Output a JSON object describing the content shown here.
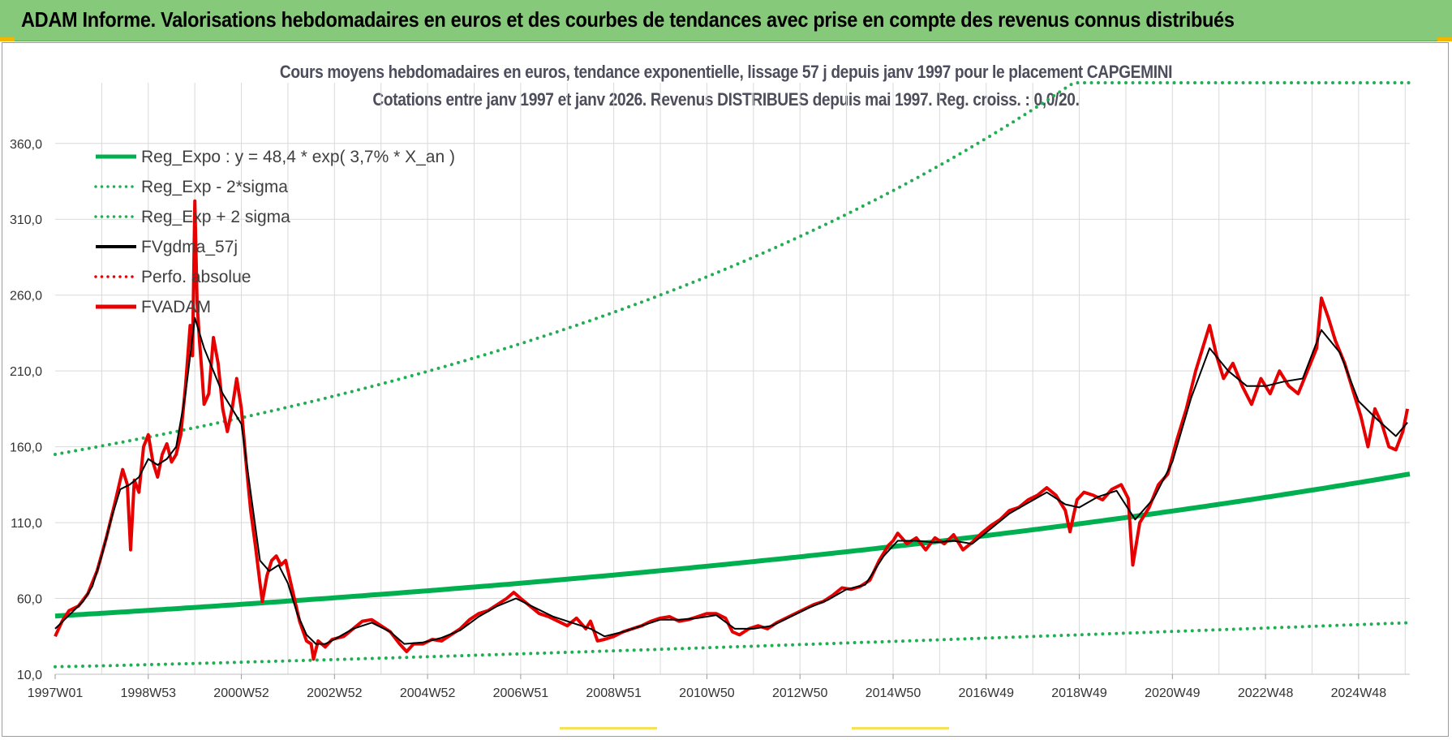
{
  "header": {
    "title": "ADAM Informe. Valorisations hebdomadaires en euros et des courbes de tendances avec prise en compte des revenus connus distribués"
  },
  "chart": {
    "title_line1": "Cours moyens hebdomadaires en euros, tendance exponentielle, lissage 57 j depuis janv 1997 pour le placement CAPGEMINI",
    "title_line2": "Cotations entre janv 1997 et janv 2026. Revenus DISTRIBUES depuis mai 1997. Reg. croiss. : 0,0/20."
  },
  "colors": {
    "header_bg": "#86c97a",
    "reg_green": "#00b050",
    "sigma_green": "#1fae52",
    "smooth_black": "#000000",
    "adam_red": "#e60000",
    "perfo_red": "#e60000",
    "grid": "#d9d9d9"
  },
  "chart_data": {
    "type": "line",
    "xlabel": "",
    "ylabel": "",
    "x_range": [
      1997.0,
      2026.1
    ],
    "ylim": [
      10,
      400
    ],
    "y_ticks": [
      "10,0",
      "60,0",
      "110,0",
      "160,0",
      "210,0",
      "260,0",
      "310,0",
      "360,0"
    ],
    "y_tick_values": [
      10,
      60,
      110,
      160,
      210,
      260,
      310,
      360
    ],
    "x_tick_labels": [
      "1997W01",
      "1998W53",
      "2000W52",
      "2002W52",
      "2004W52",
      "2006W51",
      "2008W51",
      "2010W50",
      "2012W50",
      "2014W50",
      "2016W49",
      "2018W49",
      "2020W49",
      "2022W48",
      "2024W48"
    ],
    "x_tick_values": [
      1997.0,
      1999.0,
      2001.0,
      2003.0,
      2005.0,
      2007.0,
      2009.0,
      2011.0,
      2013.0,
      2015.0,
      2017.0,
      2019.0,
      2021.0,
      2023.0,
      2025.0
    ],
    "legend": [
      {
        "label": "Reg_Expo : y = 48,4 * exp( 3,7% *  X_an )",
        "style": "solid-thick",
        "color": "#00b050"
      },
      {
        "label": "Reg_Exp - 2*sigma",
        "style": "dotted",
        "color": "#1fae52"
      },
      {
        "label": "Reg_Exp + 2 sigma",
        "style": "dotted",
        "color": "#1fae52"
      },
      {
        "label": "FVgdma_57j",
        "style": "solid",
        "color": "#000000"
      },
      {
        "label": "Perfo. absolue",
        "style": "dotted",
        "color": "#e60000"
      },
      {
        "label": "FVADAM",
        "style": "solid-thick",
        "color": "#e60000"
      }
    ],
    "regression": {
      "a": 48.4,
      "rate": 0.037,
      "start_year": 1997.0,
      "end_year": 2026.1
    },
    "sigma_lower": {
      "start": 15,
      "end": 44
    },
    "sigma_upper": {
      "start": 155,
      "end_cap": 400
    },
    "series": [
      {
        "name": "FVADAM",
        "points": [
          [
            1997.0,
            35
          ],
          [
            1997.15,
            45
          ],
          [
            1997.3,
            52
          ],
          [
            1997.5,
            55
          ],
          [
            1997.7,
            63
          ],
          [
            1997.9,
            78
          ],
          [
            1998.1,
            100
          ],
          [
            1998.3,
            125
          ],
          [
            1998.45,
            145
          ],
          [
            1998.55,
            135
          ],
          [
            1998.62,
            92
          ],
          [
            1998.7,
            138
          ],
          [
            1998.8,
            130
          ],
          [
            1998.9,
            160
          ],
          [
            1999.0,
            168
          ],
          [
            1999.1,
            150
          ],
          [
            1999.2,
            140
          ],
          [
            1999.3,
            155
          ],
          [
            1999.4,
            162
          ],
          [
            1999.5,
            150
          ],
          [
            1999.6,
            155
          ],
          [
            1999.7,
            168
          ],
          [
            1999.8,
            200
          ],
          [
            1999.9,
            240
          ],
          [
            1999.95,
            220
          ],
          [
            2000.0,
            322
          ],
          [
            2000.05,
            255
          ],
          [
            2000.1,
            230
          ],
          [
            2000.15,
            210
          ],
          [
            2000.2,
            188
          ],
          [
            2000.3,
            195
          ],
          [
            2000.4,
            232
          ],
          [
            2000.5,
            215
          ],
          [
            2000.6,
            185
          ],
          [
            2000.7,
            170
          ],
          [
            2000.8,
            185
          ],
          [
            2000.9,
            205
          ],
          [
            2001.0,
            185
          ],
          [
            2001.1,
            150
          ],
          [
            2001.2,
            118
          ],
          [
            2001.3,
            95
          ],
          [
            2001.4,
            70
          ],
          [
            2001.45,
            58
          ],
          [
            2001.55,
            75
          ],
          [
            2001.65,
            85
          ],
          [
            2001.75,
            88
          ],
          [
            2001.85,
            82
          ],
          [
            2001.95,
            85
          ],
          [
            2002.1,
            65
          ],
          [
            2002.25,
            45
          ],
          [
            2002.4,
            32
          ],
          [
            2002.5,
            30
          ],
          [
            2002.55,
            20
          ],
          [
            2002.65,
            32
          ],
          [
            2002.8,
            28
          ],
          [
            2002.95,
            33
          ],
          [
            2003.2,
            35
          ],
          [
            2003.4,
            40
          ],
          [
            2003.6,
            45
          ],
          [
            2003.8,
            46
          ],
          [
            2004.0,
            42
          ],
          [
            2004.2,
            38
          ],
          [
            2004.4,
            30
          ],
          [
            2004.55,
            25
          ],
          [
            2004.7,
            30
          ],
          [
            2004.9,
            30
          ],
          [
            2005.1,
            33
          ],
          [
            2005.3,
            32
          ],
          [
            2005.5,
            36
          ],
          [
            2005.7,
            40
          ],
          [
            2005.9,
            46
          ],
          [
            2006.1,
            50
          ],
          [
            2006.3,
            52
          ],
          [
            2006.5,
            56
          ],
          [
            2006.7,
            60
          ],
          [
            2006.85,
            64
          ],
          [
            2007.0,
            60
          ],
          [
            2007.2,
            55
          ],
          [
            2007.4,
            50
          ],
          [
            2007.6,
            48
          ],
          [
            2007.8,
            45
          ],
          [
            2008.0,
            42
          ],
          [
            2008.2,
            47
          ],
          [
            2008.4,
            40
          ],
          [
            2008.5,
            45
          ],
          [
            2008.65,
            32
          ],
          [
            2008.8,
            33
          ],
          [
            2009.0,
            35
          ],
          [
            2009.2,
            38
          ],
          [
            2009.4,
            40
          ],
          [
            2009.6,
            42
          ],
          [
            2009.8,
            45
          ],
          [
            2010.0,
            47
          ],
          [
            2010.2,
            48
          ],
          [
            2010.4,
            45
          ],
          [
            2010.6,
            46
          ],
          [
            2010.8,
            48
          ],
          [
            2011.0,
            50
          ],
          [
            2011.2,
            50
          ],
          [
            2011.4,
            47
          ],
          [
            2011.55,
            38
          ],
          [
            2011.7,
            36
          ],
          [
            2011.9,
            40
          ],
          [
            2012.1,
            42
          ],
          [
            2012.3,
            40
          ],
          [
            2012.5,
            44
          ],
          [
            2012.7,
            47
          ],
          [
            2012.9,
            50
          ],
          [
            2013.1,
            53
          ],
          [
            2013.3,
            56
          ],
          [
            2013.5,
            58
          ],
          [
            2013.7,
            62
          ],
          [
            2013.9,
            67
          ],
          [
            2014.1,
            66
          ],
          [
            2014.3,
            68
          ],
          [
            2014.5,
            72
          ],
          [
            2014.7,
            85
          ],
          [
            2014.9,
            95
          ],
          [
            2015.0,
            98
          ],
          [
            2015.1,
            103
          ],
          [
            2015.3,
            96
          ],
          [
            2015.5,
            100
          ],
          [
            2015.7,
            92
          ],
          [
            2015.9,
            100
          ],
          [
            2016.1,
            96
          ],
          [
            2016.3,
            102
          ],
          [
            2016.5,
            92
          ],
          [
            2016.7,
            97
          ],
          [
            2016.9,
            103
          ],
          [
            2017.1,
            108
          ],
          [
            2017.3,
            112
          ],
          [
            2017.5,
            118
          ],
          [
            2017.7,
            120
          ],
          [
            2017.9,
            125
          ],
          [
            2018.1,
            128
          ],
          [
            2018.3,
            133
          ],
          [
            2018.5,
            128
          ],
          [
            2018.7,
            118
          ],
          [
            2018.8,
            104
          ],
          [
            2018.95,
            125
          ],
          [
            2019.1,
            130
          ],
          [
            2019.3,
            128
          ],
          [
            2019.5,
            125
          ],
          [
            2019.7,
            132
          ],
          [
            2019.9,
            135
          ],
          [
            2020.05,
            126
          ],
          [
            2020.15,
            82
          ],
          [
            2020.3,
            110
          ],
          [
            2020.5,
            120
          ],
          [
            2020.7,
            135
          ],
          [
            2020.9,
            142
          ],
          [
            2021.1,
            165
          ],
          [
            2021.3,
            185
          ],
          [
            2021.5,
            210
          ],
          [
            2021.65,
            225
          ],
          [
            2021.8,
            240
          ],
          [
            2021.95,
            220
          ],
          [
            2022.1,
            205
          ],
          [
            2022.3,
            215
          ],
          [
            2022.5,
            200
          ],
          [
            2022.7,
            188
          ],
          [
            2022.9,
            205
          ],
          [
            2023.1,
            195
          ],
          [
            2023.3,
            210
          ],
          [
            2023.5,
            200
          ],
          [
            2023.7,
            195
          ],
          [
            2023.9,
            210
          ],
          [
            2024.1,
            225
          ],
          [
            2024.2,
            258
          ],
          [
            2024.35,
            245
          ],
          [
            2024.5,
            230
          ],
          [
            2024.7,
            215
          ],
          [
            2024.9,
            195
          ],
          [
            2025.05,
            180
          ],
          [
            2025.2,
            160
          ],
          [
            2025.35,
            185
          ],
          [
            2025.5,
            175
          ],
          [
            2025.65,
            160
          ],
          [
            2025.8,
            158
          ],
          [
            2025.95,
            170
          ],
          [
            2026.05,
            185
          ]
        ]
      },
      {
        "name": "FVgdma_57j",
        "points": [
          [
            1997.0,
            40
          ],
          [
            1997.2,
            46
          ],
          [
            1997.4,
            52
          ],
          [
            1997.6,
            58
          ],
          [
            1997.8,
            68
          ],
          [
            1998.0,
            88
          ],
          [
            1998.2,
            112
          ],
          [
            1998.4,
            132
          ],
          [
            1998.6,
            135
          ],
          [
            1998.8,
            140
          ],
          [
            1999.0,
            152
          ],
          [
            1999.2,
            148
          ],
          [
            1999.4,
            152
          ],
          [
            1999.6,
            160
          ],
          [
            1999.8,
            195
          ],
          [
            2000.0,
            245
          ],
          [
            2000.2,
            225
          ],
          [
            2000.4,
            210
          ],
          [
            2000.6,
            195
          ],
          [
            2000.8,
            185
          ],
          [
            2001.0,
            175
          ],
          [
            2001.2,
            130
          ],
          [
            2001.4,
            85
          ],
          [
            2001.6,
            78
          ],
          [
            2001.8,
            82
          ],
          [
            2002.0,
            70
          ],
          [
            2002.2,
            50
          ],
          [
            2002.4,
            36
          ],
          [
            2002.6,
            30
          ],
          [
            2002.8,
            30
          ],
          [
            2003.0,
            33
          ],
          [
            2003.4,
            40
          ],
          [
            2003.8,
            44
          ],
          [
            2004.2,
            38
          ],
          [
            2004.5,
            30
          ],
          [
            2004.9,
            31
          ],
          [
            2005.3,
            34
          ],
          [
            2005.7,
            39
          ],
          [
            2006.1,
            48
          ],
          [
            2006.5,
            55
          ],
          [
            2006.9,
            60
          ],
          [
            2007.3,
            54
          ],
          [
            2007.7,
            48
          ],
          [
            2008.1,
            44
          ],
          [
            2008.5,
            40
          ],
          [
            2008.8,
            35
          ],
          [
            2009.2,
            38
          ],
          [
            2009.6,
            42
          ],
          [
            2010.0,
            46
          ],
          [
            2010.4,
            46
          ],
          [
            2010.8,
            47
          ],
          [
            2011.2,
            49
          ],
          [
            2011.6,
            40
          ],
          [
            2012.0,
            40
          ],
          [
            2012.4,
            42
          ],
          [
            2012.8,
            48
          ],
          [
            2013.2,
            54
          ],
          [
            2013.6,
            59
          ],
          [
            2014.0,
            66
          ],
          [
            2014.4,
            69
          ],
          [
            2014.8,
            88
          ],
          [
            2015.1,
            98
          ],
          [
            2015.5,
            98
          ],
          [
            2015.9,
            97
          ],
          [
            2016.3,
            98
          ],
          [
            2016.7,
            96
          ],
          [
            2017.1,
            106
          ],
          [
            2017.5,
            116
          ],
          [
            2017.9,
            123
          ],
          [
            2018.3,
            130
          ],
          [
            2018.7,
            122
          ],
          [
            2019.0,
            120
          ],
          [
            2019.4,
            127
          ],
          [
            2019.8,
            131
          ],
          [
            2020.2,
            112
          ],
          [
            2020.6,
            126
          ],
          [
            2021.0,
            150
          ],
          [
            2021.4,
            192
          ],
          [
            2021.8,
            225
          ],
          [
            2022.2,
            210
          ],
          [
            2022.6,
            200
          ],
          [
            2023.0,
            200
          ],
          [
            2023.4,
            203
          ],
          [
            2023.8,
            205
          ],
          [
            2024.2,
            237
          ],
          [
            2024.6,
            222
          ],
          [
            2025.0,
            190
          ],
          [
            2025.4,
            178
          ],
          [
            2025.8,
            167
          ],
          [
            2026.05,
            176
          ]
        ]
      }
    ]
  }
}
